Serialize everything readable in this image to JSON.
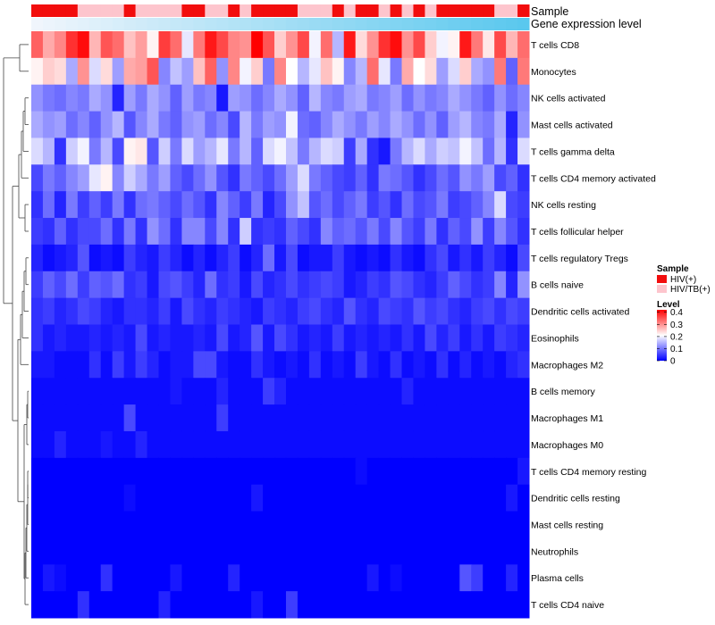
{
  "chart_data": {
    "type": "heatmap",
    "title": "",
    "rows": [
      "T cells CD8",
      "Monocytes",
      "NK cells activated",
      "Mast cells activated",
      "T cells gamma delta",
      "T cells CD4 memory activated",
      "NK cells resting",
      "T cells follicular helper",
      "T cells regulatory  Tregs",
      "B cells naive",
      "Dendritic cells activated",
      "Eosinophils",
      "Macrophages M2",
      "B cells memory",
      "Macrophages M1",
      "Macrophages M0",
      "T cells CD4 memory resting",
      "Dendritic cells resting",
      "Mast cells resting",
      "Neutrophils",
      "Plasma cells",
      "T cells CD4 naive"
    ],
    "n_columns": 43,
    "column_annotations": [
      {
        "name": "Sample"
      },
      {
        "name": "Gene expression level"
      }
    ],
    "sample_groups": [
      "HIV(+)",
      "HIV(+)",
      "HIV(+)",
      "HIV(+)",
      "HIV/TB(+)",
      "HIV/TB(+)",
      "HIV/TB(+)",
      "HIV/TB(+)",
      "HIV(+)",
      "HIV/TB(+)",
      "HIV/TB(+)",
      "HIV/TB(+)",
      "HIV/TB(+)",
      "HIV(+)",
      "HIV(+)",
      "HIV/TB(+)",
      "HIV/TB(+)",
      "HIV(+)",
      "HIV/TB(+)",
      "HIV(+)",
      "HIV(+)",
      "HIV(+)",
      "HIV(+)",
      "HIV/TB(+)",
      "HIV/TB(+)",
      "HIV/TB(+)",
      "HIV(+)",
      "HIV/TB(+)",
      "HIV(+)",
      "HIV(+)",
      "HIV/TB(+)",
      "HIV(+)",
      "HIV/TB(+)",
      "HIV(+)",
      "HIV/TB(+)",
      "HIV(+)",
      "HIV(+)",
      "HIV(+)",
      "HIV(+)",
      "HIV(+)",
      "HIV/TB(+)",
      "HIV/TB(+)",
      "HIV(+)"
    ],
    "expression_range": [
      0,
      1
    ],
    "sample_legend": {
      "title": "Sample",
      "items": [
        {
          "label": "HIV(+)",
          "color": "#f20d0d"
        },
        {
          "label": "HIV/TB(+)",
          "color": "#fdc5cd"
        }
      ]
    },
    "level_legend": {
      "title": "Level",
      "ticks": [
        "0.4",
        "0.3",
        "0.2",
        "0.1",
        "0"
      ],
      "tick_values": [
        0.4,
        0.3,
        0.2,
        0.1,
        0
      ],
      "range": [
        0,
        0.42
      ],
      "colors": [
        "#0000ff",
        "#ffffff",
        "#ff0000"
      ]
    },
    "values": [
      [
        0.34,
        0.28,
        0.31,
        0.38,
        0.41,
        0.27,
        0.35,
        0.33,
        0.26,
        0.29,
        0.22,
        0.37,
        0.33,
        0.19,
        0.32,
        0.4,
        0.36,
        0.31,
        0.3,
        0.42,
        0.35,
        0.25,
        0.3,
        0.36,
        0.2,
        0.33,
        0.15,
        0.4,
        0.24,
        0.3,
        0.38,
        0.41,
        0.3,
        0.36,
        0.25,
        0.2,
        0.22,
        0.4,
        0.32,
        0.23,
        0.36,
        0.27,
        0.33
      ],
      [
        0.22,
        0.25,
        0.24,
        0.14,
        0.3,
        0.18,
        0.24,
        0.13,
        0.28,
        0.29,
        0.35,
        0.11,
        0.16,
        0.13,
        0.26,
        0.34,
        0.12,
        0.31,
        0.2,
        0.25,
        0.1,
        0.31,
        0.21,
        0.15,
        0.19,
        0.26,
        0.22,
        0.11,
        0.15,
        0.33,
        0.19,
        0.1,
        0.28,
        0.21,
        0.24,
        0.13,
        0.18,
        0.25,
        0.14,
        0.12,
        0.32,
        0.08,
        0.32
      ],
      [
        0.12,
        0.1,
        0.09,
        0.11,
        0.1,
        0.14,
        0.12,
        0.03,
        0.13,
        0.1,
        0.14,
        0.12,
        0.08,
        0.13,
        0.1,
        0.11,
        0.02,
        0.13,
        0.12,
        0.09,
        0.11,
        0.14,
        0.12,
        0.08,
        0.15,
        0.11,
        0.1,
        0.13,
        0.14,
        0.1,
        0.11,
        0.13,
        0.09,
        0.12,
        0.1,
        0.11,
        0.14,
        0.12,
        0.1,
        0.08,
        0.12,
        0.09,
        0.11
      ],
      [
        0.14,
        0.12,
        0.13,
        0.09,
        0.11,
        0.08,
        0.12,
        0.15,
        0.07,
        0.11,
        0.14,
        0.1,
        0.08,
        0.12,
        0.13,
        0.09,
        0.11,
        0.06,
        0.15,
        0.1,
        0.13,
        0.12,
        0.2,
        0.09,
        0.08,
        0.11,
        0.14,
        0.12,
        0.1,
        0.13,
        0.11,
        0.14,
        0.12,
        0.09,
        0.12,
        0.08,
        0.13,
        0.15,
        0.11,
        0.1,
        0.14,
        0.03,
        0.12
      ],
      [
        0.18,
        0.15,
        0.04,
        0.17,
        0.2,
        0.1,
        0.15,
        0.06,
        0.22,
        0.23,
        0.07,
        0.17,
        0.1,
        0.18,
        0.13,
        0.15,
        0.19,
        0.1,
        0.15,
        0.08,
        0.18,
        0.2,
        0.16,
        0.1,
        0.15,
        0.18,
        0.17,
        0.05,
        0.14,
        0.04,
        0.02,
        0.1,
        0.15,
        0.18,
        0.14,
        0.17,
        0.16,
        0.2,
        0.16,
        0.09,
        0.15,
        0.04,
        0.18
      ],
      [
        0.06,
        0.1,
        0.08,
        0.11,
        0.13,
        0.19,
        0.22,
        0.11,
        0.17,
        0.14,
        0.1,
        0.13,
        0.08,
        0.06,
        0.09,
        0.12,
        0.07,
        0.04,
        0.1,
        0.08,
        0.06,
        0.09,
        0.13,
        0.18,
        0.1,
        0.08,
        0.06,
        0.05,
        0.08,
        0.04,
        0.1,
        0.09,
        0.07,
        0.04,
        0.06,
        0.09,
        0.07,
        0.12,
        0.1,
        0.13,
        0.06,
        0.08,
        0.04
      ],
      [
        0.04,
        0.09,
        0.03,
        0.1,
        0.05,
        0.08,
        0.05,
        0.1,
        0.04,
        0.09,
        0.1,
        0.08,
        0.06,
        0.09,
        0.07,
        0.04,
        0.11,
        0.08,
        0.05,
        0.1,
        0.03,
        0.06,
        0.12,
        0.16,
        0.07,
        0.09,
        0.06,
        0.08,
        0.1,
        0.05,
        0.07,
        0.04,
        0.09,
        0.06,
        0.07,
        0.1,
        0.05,
        0.06,
        0.08,
        0.11,
        0.18,
        0.06,
        0.05
      ],
      [
        0.05,
        0.04,
        0.08,
        0.04,
        0.06,
        0.06,
        0.09,
        0.04,
        0.1,
        0.04,
        0.12,
        0.09,
        0.04,
        0.11,
        0.11,
        0.06,
        0.11,
        0.04,
        0.17,
        0.04,
        0.05,
        0.04,
        0.08,
        0.06,
        0.04,
        0.11,
        0.08,
        0.09,
        0.07,
        0.1,
        0.06,
        0.11,
        0.07,
        0.05,
        0.1,
        0.04,
        0.08,
        0.06,
        0.12,
        0.05,
        0.11,
        0.07,
        0.04
      ],
      [
        0.03,
        0.01,
        0.02,
        0.03,
        0.07,
        0.01,
        0.02,
        0.01,
        0.05,
        0.03,
        0.02,
        0.05,
        0.03,
        0.01,
        0.03,
        0.01,
        0.03,
        0.05,
        0.01,
        0.03,
        0.09,
        0.02,
        0.06,
        0.01,
        0.02,
        0.02,
        0.05,
        0.02,
        0.01,
        0.02,
        0.01,
        0.04,
        0.02,
        0.01,
        0.04,
        0.06,
        0.02,
        0.04,
        0.02,
        0.05,
        0.03,
        0.01,
        0.06
      ],
      [
        0.05,
        0.08,
        0.06,
        0.09,
        0.05,
        0.08,
        0.07,
        0.09,
        0.04,
        0.05,
        0.02,
        0.06,
        0.07,
        0.05,
        0.03,
        0.09,
        0.04,
        0.05,
        0.02,
        0.06,
        0.03,
        0.04,
        0.06,
        0.04,
        0.05,
        0.06,
        0.05,
        0.02,
        0.03,
        0.05,
        0.04,
        0.07,
        0.06,
        0.04,
        0.03,
        0.05,
        0.08,
        0.06,
        0.04,
        0.05,
        0.11,
        0.03,
        0.12
      ],
      [
        0.04,
        0.05,
        0.03,
        0.04,
        0.06,
        0.05,
        0.03,
        0.02,
        0.04,
        0.04,
        0.03,
        0.05,
        0.02,
        0.06,
        0.04,
        0.03,
        0.05,
        0.04,
        0.03,
        0.02,
        0.05,
        0.04,
        0.03,
        0.05,
        0.06,
        0.04,
        0.03,
        0.07,
        0.04,
        0.03,
        0.06,
        0.05,
        0.04,
        0.07,
        0.05,
        0.06,
        0.04,
        0.03,
        0.05,
        0.06,
        0.04,
        0.06,
        0.05
      ],
      [
        0.04,
        0.02,
        0.03,
        0.02,
        0.02,
        0.03,
        0.02,
        0.03,
        0.02,
        0.06,
        0.02,
        0.03,
        0.02,
        0.02,
        0.03,
        0.02,
        0.06,
        0.02,
        0.03,
        0.07,
        0.02,
        0.06,
        0.04,
        0.02,
        0.03,
        0.02,
        0.05,
        0.02,
        0.03,
        0.02,
        0.03,
        0.02,
        0.04,
        0.02,
        0.06,
        0.03,
        0.05,
        0.02,
        0.04,
        0.02,
        0.05,
        0.04,
        0.03
      ],
      [
        0.02,
        0.02,
        0.01,
        0.01,
        0.01,
        0.04,
        0.01,
        0.05,
        0.02,
        0.05,
        0.03,
        0.01,
        0.02,
        0.02,
        0.06,
        0.06,
        0.02,
        0.01,
        0.01,
        0.04,
        0.02,
        0.01,
        0.02,
        0.01,
        0.04,
        0.01,
        0.02,
        0.01,
        0.05,
        0.02,
        0.01,
        0.04,
        0.01,
        0.02,
        0.01,
        0.04,
        0.01,
        0.03,
        0.01,
        0.02,
        0.01,
        0.03,
        0.04
      ],
      [
        0.01,
        0.01,
        0.01,
        0.01,
        0.01,
        0.01,
        0.01,
        0.01,
        0.01,
        0.01,
        0.01,
        0.01,
        0.02,
        0.01,
        0.01,
        0.01,
        0.03,
        0.01,
        0.01,
        0.01,
        0.05,
        0.03,
        0.01,
        0.01,
        0.01,
        0.01,
        0.01,
        0.01,
        0.01,
        0.01,
        0.01,
        0.01,
        0.03,
        0.01,
        0.01,
        0.01,
        0.01,
        0.01,
        0.01,
        0.01,
        0.01,
        0.01,
        0.01
      ],
      [
        0.01,
        0.01,
        0.01,
        0.01,
        0.01,
        0.01,
        0.01,
        0.01,
        0.06,
        0.01,
        0.01,
        0.01,
        0.01,
        0.01,
        0.01,
        0.01,
        0.05,
        0.01,
        0.01,
        0.01,
        0.01,
        0.01,
        0.01,
        0.01,
        0.01,
        0.01,
        0.01,
        0.01,
        0.01,
        0.01,
        0.01,
        0.01,
        0.01,
        0.01,
        0.01,
        0.01,
        0.01,
        0.01,
        0.01,
        0.01,
        0.01,
        0.01,
        0.01
      ],
      [
        0.01,
        0.01,
        0.03,
        0.01,
        0.01,
        0.01,
        0.02,
        0.01,
        0.01,
        0.03,
        0.01,
        0.01,
        0.01,
        0.01,
        0.01,
        0.01,
        0.01,
        0.01,
        0.01,
        0.01,
        0.01,
        0.01,
        0.01,
        0.01,
        0.01,
        0.01,
        0.01,
        0.01,
        0.01,
        0.01,
        0.01,
        0.01,
        0.01,
        0.01,
        0.01,
        0.01,
        0.01,
        0.01,
        0.01,
        0.01,
        0.01,
        0.01,
        0.01
      ],
      [
        0.0,
        0.0,
        0.0,
        0.0,
        0.0,
        0.0,
        0.0,
        0.0,
        0.0,
        0.0,
        0.0,
        0.0,
        0.0,
        0.0,
        0.0,
        0.0,
        0.0,
        0.0,
        0.0,
        0.0,
        0.0,
        0.0,
        0.0,
        0.0,
        0.0,
        0.0,
        0.0,
        0.0,
        0.01,
        0.0,
        0.0,
        0.0,
        0.0,
        0.0,
        0.0,
        0.0,
        0.0,
        0.0,
        0.0,
        0.0,
        0.0,
        0.0,
        0.02
      ],
      [
        0.0,
        0.0,
        0.0,
        0.0,
        0.0,
        0.0,
        0.0,
        0.0,
        0.01,
        0.0,
        0.0,
        0.0,
        0.0,
        0.0,
        0.0,
        0.0,
        0.0,
        0.0,
        0.0,
        0.02,
        0.0,
        0.0,
        0.0,
        0.0,
        0.0,
        0.0,
        0.0,
        0.0,
        0.0,
        0.0,
        0.0,
        0.0,
        0.0,
        0.0,
        0.0,
        0.0,
        0.0,
        0.0,
        0.0,
        0.0,
        0.0,
        0.02,
        0.0
      ],
      [
        0.0,
        0.0,
        0.0,
        0.0,
        0.0,
        0.0,
        0.0,
        0.0,
        0.0,
        0.0,
        0.0,
        0.0,
        0.0,
        0.0,
        0.0,
        0.0,
        0.0,
        0.0,
        0.0,
        0.0,
        0.0,
        0.0,
        0.0,
        0.0,
        0.0,
        0.0,
        0.0,
        0.0,
        0.0,
        0.0,
        0.0,
        0.0,
        0.0,
        0.0,
        0.0,
        0.0,
        0.0,
        0.0,
        0.0,
        0.0,
        0.0,
        0.0,
        0.0
      ],
      [
        0.0,
        0.0,
        0.0,
        0.0,
        0.0,
        0.0,
        0.0,
        0.0,
        0.0,
        0.0,
        0.0,
        0.0,
        0.0,
        0.0,
        0.0,
        0.0,
        0.0,
        0.0,
        0.0,
        0.0,
        0.0,
        0.0,
        0.0,
        0.0,
        0.0,
        0.0,
        0.0,
        0.0,
        0.0,
        0.0,
        0.0,
        0.0,
        0.0,
        0.0,
        0.0,
        0.0,
        0.0,
        0.0,
        0.0,
        0.0,
        0.0,
        0.0,
        0.0
      ],
      [
        0.0,
        0.02,
        0.01,
        0.0,
        0.0,
        0.0,
        0.04,
        0.0,
        0.0,
        0.0,
        0.0,
        0.0,
        0.02,
        0.0,
        0.0,
        0.0,
        0.0,
        0.03,
        0.0,
        0.0,
        0.0,
        0.0,
        0.0,
        0.0,
        0.0,
        0.0,
        0.0,
        0.0,
        0.0,
        0.02,
        0.0,
        0.01,
        0.0,
        0.0,
        0.0,
        0.0,
        0.0,
        0.07,
        0.05,
        0.0,
        0.0,
        0.03,
        0.0
      ],
      [
        0.0,
        0.0,
        0.0,
        0.0,
        0.04,
        0.0,
        0.0,
        0.0,
        0.0,
        0.0,
        0.0,
        0.03,
        0.0,
        0.0,
        0.0,
        0.0,
        0.0,
        0.0,
        0.0,
        0.02,
        0.0,
        0.0,
        0.05,
        0.0,
        0.0,
        0.0,
        0.0,
        0.0,
        0.0,
        0.0,
        0.0,
        0.0,
        0.0,
        0.0,
        0.0,
        0.0,
        0.0,
        0.0,
        0.0,
        0.0,
        0.0,
        0.0,
        0.0
      ]
    ]
  }
}
